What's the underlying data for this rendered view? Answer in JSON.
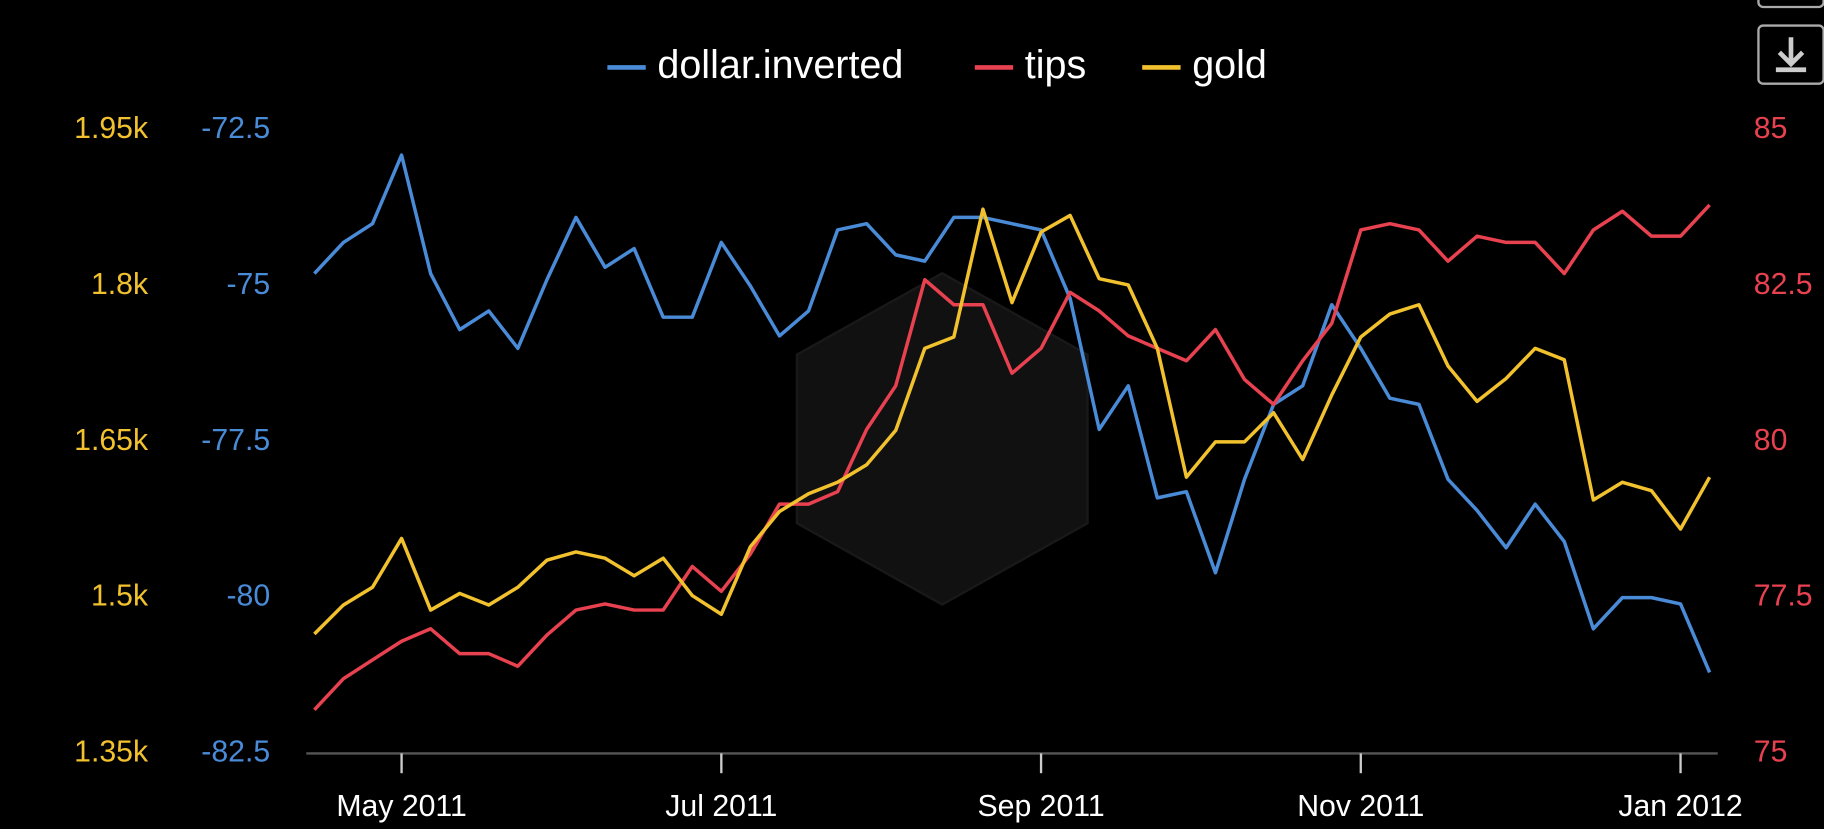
{
  "chart_data": {
    "type": "line",
    "categories": [
      null,
      null,
      null,
      "May 2011",
      null,
      null,
      null,
      null,
      null,
      null,
      null,
      null,
      null,
      null,
      "Jul 2011",
      null,
      null,
      null,
      null,
      null,
      null,
      null,
      null,
      null,
      null,
      "Sep 2011",
      null,
      null,
      null,
      null,
      null,
      null,
      null,
      null,
      null,
      null,
      "Nov 2011",
      null,
      null,
      null,
      null,
      null,
      null,
      null,
      null,
      null,
      null,
      "Jan 2012",
      null
    ],
    "series": [
      {
        "name": "dollar.inverted",
        "color": "#4a8bd8",
        "axis": "y2",
        "values": [
          -74.8,
          -74.3,
          -74.0,
          -72.9,
          -74.8,
          -75.7,
          -75.4,
          -76.0,
          -74.9,
          -73.9,
          -74.7,
          -74.4,
          -75.5,
          -75.5,
          -74.3,
          -75.0,
          -75.8,
          -75.4,
          -74.1,
          -74.0,
          -74.5,
          -74.6,
          -73.9,
          -73.9,
          -74.0,
          -74.1,
          -75.2,
          -77.3,
          -76.6,
          -78.4,
          -78.3,
          -79.6,
          -78.1,
          -76.9,
          -76.6,
          -75.3,
          -76.0,
          -76.8,
          -76.9,
          -78.1,
          -78.6,
          -79.2,
          -78.5,
          -79.1,
          -80.5,
          -80.0,
          -80.0,
          -80.1,
          -81.2
        ]
      },
      {
        "name": "tips",
        "color": "#e8414f",
        "axis": "y3",
        "values": [
          75.7,
          76.2,
          76.5,
          76.8,
          77.0,
          76.6,
          76.6,
          76.4,
          76.9,
          77.3,
          77.4,
          77.3,
          77.3,
          78.0,
          77.6,
          78.2,
          79.0,
          79.0,
          79.2,
          80.2,
          80.9,
          82.6,
          82.2,
          82.2,
          81.1,
          81.5,
          82.4,
          82.1,
          81.7,
          81.5,
          81.3,
          81.8,
          81.0,
          80.6,
          81.3,
          81.9,
          83.4,
          83.5,
          83.4,
          82.9,
          83.3,
          83.2,
          83.2,
          82.7,
          83.4,
          83.7,
          83.3,
          83.3,
          83.8
        ]
      },
      {
        "name": "gold",
        "color": "#f2c12e",
        "axis": "y",
        "values": [
          1465,
          1493,
          1510,
          1557,
          1488,
          1504,
          1493,
          1510,
          1536,
          1544,
          1538,
          1521,
          1538,
          1502,
          1484,
          1549,
          1583,
          1600,
          1611,
          1628,
          1661,
          1740,
          1751,
          1874,
          1784,
          1852,
          1868,
          1807,
          1801,
          1740,
          1616,
          1650,
          1650,
          1678,
          1633,
          1695,
          1751,
          1773,
          1782,
          1723,
          1689,
          1711,
          1740,
          1729,
          1594,
          1611,
          1603,
          1566,
          1616
        ]
      }
    ],
    "ylim": [
      1350,
      1950
    ],
    "yticks": [
      {
        "value": 1950,
        "label": "1.95k"
      },
      {
        "value": 1800,
        "label": "1.8k"
      },
      {
        "value": 1650,
        "label": "1.65k"
      },
      {
        "value": 1500,
        "label": "1.5k"
      },
      {
        "value": 1350,
        "label": "1.35k"
      }
    ],
    "y2lim": [
      -82.5,
      -72.5
    ],
    "y2ticks": [
      -72.5,
      -75,
      -77.5,
      -80,
      -82.5
    ],
    "y3lim": [
      75,
      85
    ],
    "y3ticks": [
      85,
      82.5,
      80,
      77.5,
      75
    ],
    "grid": false,
    "legend": "top"
  }
}
